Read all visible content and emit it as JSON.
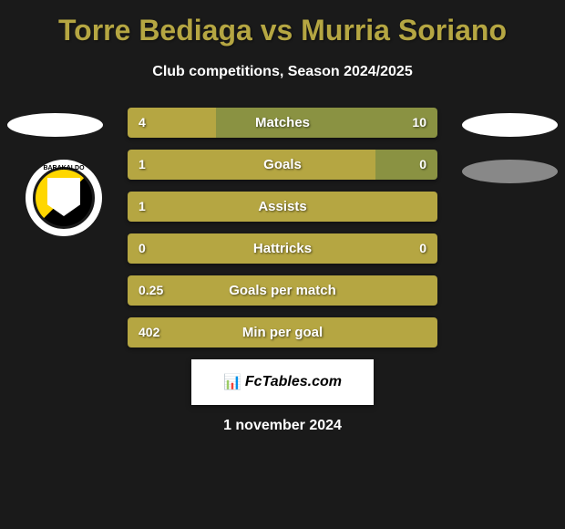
{
  "title": "Torre Bediaga vs Murria Soriano",
  "subtitle": "Club competitions, Season 2024/2025",
  "colors": {
    "background": "#1a1a1a",
    "title": "#b5a642",
    "bar_left": "#b5a642",
    "bar_right": "#8a9242",
    "text": "#ffffff"
  },
  "stats": [
    {
      "label": "Matches",
      "left_value": "4",
      "right_value": "10",
      "left_pct": 28.5,
      "right_pct": 71.5
    },
    {
      "label": "Goals",
      "left_value": "1",
      "right_value": "0",
      "left_pct": 80,
      "right_pct": 20
    },
    {
      "label": "Assists",
      "left_value": "1",
      "right_value": "",
      "left_pct": 100,
      "right_pct": 0
    },
    {
      "label": "Hattricks",
      "left_value": "0",
      "right_value": "0",
      "left_pct": 100,
      "right_pct": 0
    },
    {
      "label": "Goals per match",
      "left_value": "0.25",
      "right_value": "",
      "left_pct": 100,
      "right_pct": 0
    },
    {
      "label": "Min per goal",
      "left_value": "402",
      "right_value": "",
      "left_pct": 100,
      "right_pct": 0
    }
  ],
  "footer": {
    "brand": "FcTables.com",
    "date": "1 november 2024"
  },
  "badge": {
    "text": "BARAKALDO"
  }
}
